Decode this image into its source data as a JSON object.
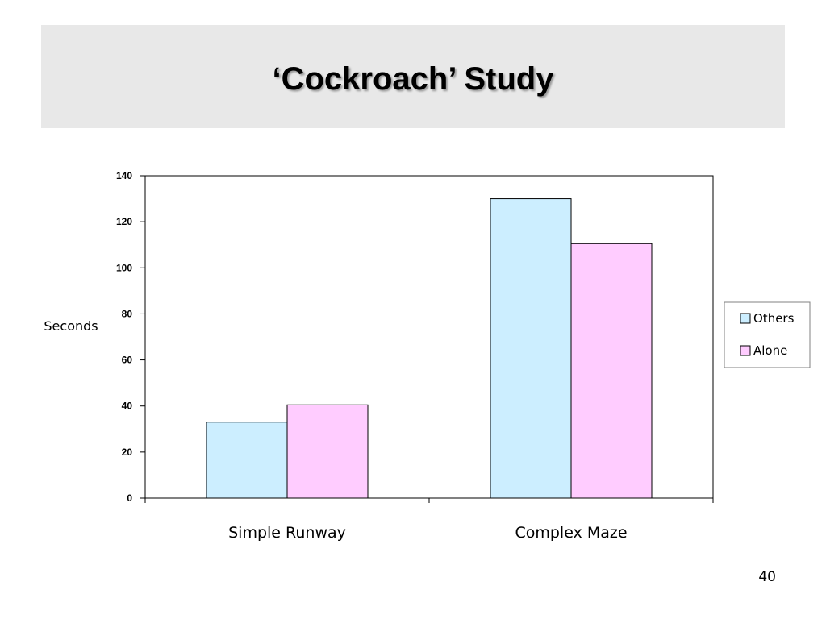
{
  "slide": {
    "title": "‘Cockroach’ Study",
    "page_number": "40"
  },
  "chart_data": {
    "type": "bar",
    "title": "",
    "xlabel": "",
    "ylabel": "Seconds",
    "categories": [
      "Simple Runway",
      "Complex Maze"
    ],
    "series": [
      {
        "name": "Others",
        "values": [
          33,
          130
        ],
        "color": "#cceeff"
      },
      {
        "name": "Alone",
        "values": [
          40.5,
          110.5
        ],
        "color": "#ffccff"
      }
    ],
    "ylim": [
      0,
      140
    ],
    "yticks": [
      "0",
      "20",
      "40",
      "60",
      "80",
      "100",
      "120",
      "140"
    ],
    "grid": false,
    "legend": "right"
  }
}
